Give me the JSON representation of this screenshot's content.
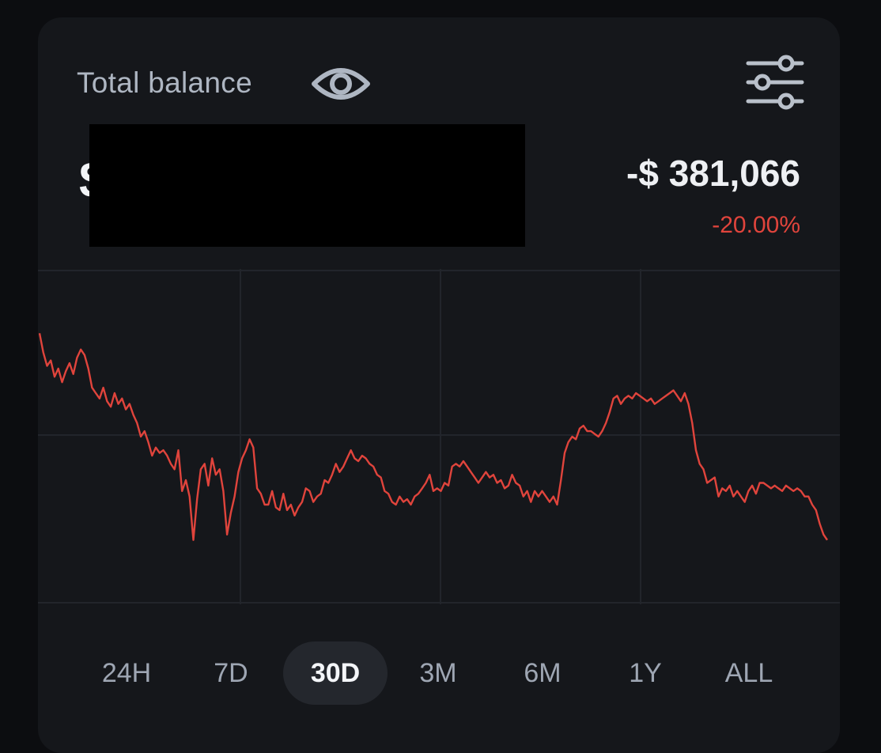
{
  "header": {
    "title": "Total balance",
    "visibility_icon": "eye-icon",
    "settings_icon": "sliders-icon"
  },
  "balance": {
    "visible_prefix": "$",
    "redacted": true
  },
  "change": {
    "amount": "-$ 381,066",
    "percent": "-20.00%",
    "color": "#e0443c"
  },
  "chart_data": {
    "type": "line",
    "grid": true,
    "color": "#e0443c",
    "ylim": [
      0,
      1
    ],
    "y": [
      0.88,
      0.81,
      0.76,
      0.78,
      0.72,
      0.75,
      0.7,
      0.74,
      0.77,
      0.73,
      0.79,
      0.82,
      0.8,
      0.75,
      0.68,
      0.66,
      0.64,
      0.68,
      0.63,
      0.61,
      0.66,
      0.62,
      0.64,
      0.6,
      0.62,
      0.58,
      0.55,
      0.5,
      0.52,
      0.48,
      0.43,
      0.46,
      0.44,
      0.45,
      0.43,
      0.4,
      0.38,
      0.45,
      0.3,
      0.34,
      0.28,
      0.12,
      0.27,
      0.38,
      0.4,
      0.32,
      0.42,
      0.36,
      0.38,
      0.3,
      0.14,
      0.22,
      0.28,
      0.37,
      0.42,
      0.45,
      0.49,
      0.46,
      0.31,
      0.29,
      0.25,
      0.25,
      0.3,
      0.24,
      0.23,
      0.29,
      0.23,
      0.25,
      0.21,
      0.24,
      0.26,
      0.31,
      0.3,
      0.26,
      0.28,
      0.29,
      0.34,
      0.33,
      0.36,
      0.4,
      0.37,
      0.39,
      0.42,
      0.45,
      0.42,
      0.41,
      0.43,
      0.42,
      0.4,
      0.39,
      0.36,
      0.35,
      0.3,
      0.29,
      0.26,
      0.25,
      0.28,
      0.26,
      0.27,
      0.25,
      0.28,
      0.29,
      0.31,
      0.33,
      0.36,
      0.3,
      0.31,
      0.3,
      0.33,
      0.32,
      0.39,
      0.4,
      0.39,
      0.41,
      0.39,
      0.37,
      0.35,
      0.33,
      0.35,
      0.37,
      0.35,
      0.36,
      0.33,
      0.34,
      0.31,
      0.32,
      0.36,
      0.33,
      0.32,
      0.28,
      0.3,
      0.26,
      0.3,
      0.28,
      0.3,
      0.28,
      0.26,
      0.28,
      0.25,
      0.34,
      0.44,
      0.48,
      0.5,
      0.49,
      0.53,
      0.54,
      0.52,
      0.52,
      0.51,
      0.5,
      0.52,
      0.55,
      0.59,
      0.64,
      0.65,
      0.62,
      0.64,
      0.65,
      0.64,
      0.66,
      0.65,
      0.64,
      0.63,
      0.64,
      0.62,
      0.63,
      0.64,
      0.65,
      0.66,
      0.67,
      0.65,
      0.63,
      0.66,
      0.62,
      0.55,
      0.45,
      0.4,
      0.38,
      0.33,
      0.34,
      0.35,
      0.28,
      0.31,
      0.3,
      0.32,
      0.28,
      0.3,
      0.28,
      0.26,
      0.3,
      0.32,
      0.29,
      0.33,
      0.33,
      0.32,
      0.31,
      0.32,
      0.31,
      0.3,
      0.32,
      0.31,
      0.3,
      0.31,
      0.3,
      0.28,
      0.28,
      0.25,
      0.23,
      0.18,
      0.14,
      0.12
    ]
  },
  "range_selector": {
    "options": [
      "24H",
      "7D",
      "30D",
      "3M",
      "6M",
      "1Y",
      "ALL"
    ],
    "active_index": 2
  }
}
